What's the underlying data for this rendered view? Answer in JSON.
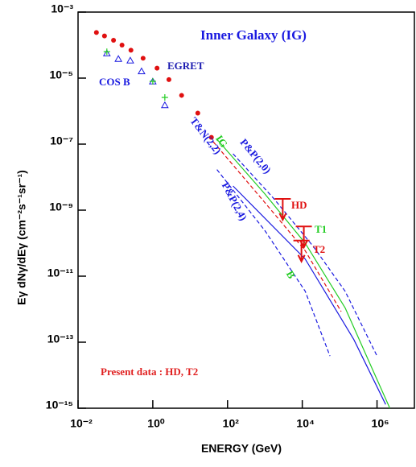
{
  "chart_data": {
    "type": "scatter",
    "title": "Inner Galaxy (IG)",
    "x_label": "ENERGY (GeV)",
    "y_label": "Eγ dNγ/dEγ (cm⁻²s⁻¹sr⁻¹)",
    "annotation": {
      "text": "Present data : HD, T2",
      "color": "#e02020"
    },
    "extra_label": {
      "text": "B",
      "color": "#22cc22"
    },
    "log_x": true,
    "log_y": true,
    "xlim": [
      0.01,
      10000000
    ],
    "ylim": [
      1e-15,
      0.001
    ],
    "xticks": [
      {
        "value": 0.01,
        "label": "10⁻²"
      },
      {
        "value": 1,
        "label": "10⁰"
      },
      {
        "value": 100,
        "label": "10²"
      },
      {
        "value": 10000,
        "label": "10⁴"
      },
      {
        "value": 1000000,
        "label": "10⁶"
      }
    ],
    "yticks": [
      {
        "value": 1e-15,
        "label": "10⁻¹⁵"
      },
      {
        "value": 1e-13,
        "label": "10⁻¹³"
      },
      {
        "value": 1e-11,
        "label": "10⁻¹¹"
      },
      {
        "value": 1e-09,
        "label": "10⁻⁹"
      },
      {
        "value": 1e-07,
        "label": "10⁻⁷"
      },
      {
        "value": 1e-05,
        "label": "10⁻⁵"
      },
      {
        "value": 0.001,
        "label": "10⁻³"
      }
    ],
    "series": [
      {
        "name": "EGRET",
        "style": "dots",
        "color": "#e01010",
        "label_color": "#1a1ab0",
        "x": [
          0.031,
          0.051,
          0.089,
          0.15,
          0.26,
          0.55,
          1.3,
          2.7,
          5.9,
          16,
          37
        ],
        "values": [
          0.00024,
          0.00019,
          0.00014,
          0.0001,
          7e-05,
          4e-05,
          2e-05,
          9e-06,
          3e-06,
          8.7e-07,
          1.6e-07
        ]
      },
      {
        "name": "COS B",
        "style": "triangles",
        "color": "#1a1ae0",
        "label_color": "#1a1ae0",
        "x": [
          0.059,
          0.12,
          0.25,
          0.5,
          1,
          2.1
        ],
        "values": [
          5.6e-05,
          3.8e-05,
          3.4e-05,
          1.6e-05,
          7.9e-06,
          1.5e-06
        ]
      },
      {
        "style": "crosses",
        "color": "#22cc22",
        "x": [
          0.059,
          1,
          2.1
        ],
        "values": [
          6.3e-05,
          8e-06,
          2.6e-06
        ]
      },
      {
        "name": "T&N(2,2)",
        "style": "dashed",
        "color": "#e01010",
        "label_color": "#1a1ae0",
        "x": [
          41,
          1000,
          12000,
          110000
        ],
        "values": [
          1.2e-07,
          1.7e-09,
          5.9e-11,
          8.5e-13
        ]
      },
      {
        "name": "IG",
        "style": "solid",
        "color": "#22cc22",
        "label_color": "#22cc22",
        "x": [
          52,
          1000,
          12000,
          140000,
          650000,
          2200000
        ],
        "values": [
          1.4e-07,
          3.1e-09,
          1e-10,
          1.1e-12,
          2.2e-14,
          1e-15
        ]
      },
      {
        "name": "P&P(2,0)",
        "style": "dashed",
        "color": "#1a1ae0",
        "label_color": "#1a1ae0",
        "x": [
          140,
          1700,
          20000,
          140000,
          1000000
        ],
        "values": [
          5.1e-08,
          2.3e-09,
          7.8e-11,
          3.5e-12,
          3.8e-14
        ]
      },
      {
        "name": "P&P(2,4)",
        "style": "dashed",
        "color": "#1a1ae0",
        "label_color": "#1a1ae0",
        "x": [
          52,
          1000,
          12000,
          55000
        ],
        "values": [
          1.7e-08,
          2.4e-10,
          3.5e-12,
          3.8e-14
        ]
      },
      {
        "style": "solid",
        "color": "#1a1ae0",
        "x": [
          140,
          12000,
          240000,
          1700000
        ],
        "values": [
          5.4e-09,
          3.3e-11,
          1.2e-13,
          1.3e-15
        ]
      },
      {
        "name": "HD",
        "style": "upper-limit",
        "color": "#e01010",
        "label_color": "#e01010",
        "x": [
          3000
        ],
        "values": [
          2.2e-09
        ]
      },
      {
        "name": "T1",
        "style": "upper-limit",
        "color": "#e01010",
        "label_color": "#22cc22",
        "x": [
          11000
        ],
        "values": [
          3.2e-10
        ]
      },
      {
        "name": "T2",
        "style": "upper-limit",
        "color": "#e01010",
        "label_color": "#e01010",
        "x": [
          9500
        ],
        "values": [
          1.2e-10
        ]
      }
    ]
  }
}
